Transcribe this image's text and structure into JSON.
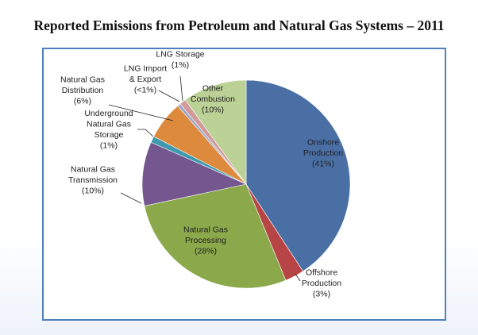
{
  "title": "Reported Emissions from Petroleum and Natural Gas Systems – 2011",
  "chart_data": {
    "type": "pie",
    "slices": [
      {
        "name": "Onshore Production",
        "value": 41,
        "label_lines": [
          "Onshore",
          "Production",
          "(41%)"
        ],
        "color": "#4a6fa5"
      },
      {
        "name": "Offshore Production",
        "value": 3,
        "label_lines": [
          "Offshore",
          "Production",
          "(3%)"
        ],
        "color": "#b84545"
      },
      {
        "name": "Natural Gas Processing",
        "value": 28,
        "label_lines": [
          "Natural Gas",
          "Processing",
          "(28%)"
        ],
        "color": "#8ba84a"
      },
      {
        "name": "Natural Gas Transmission",
        "value": 10,
        "label_lines": [
          "Natural Gas",
          "Transmission",
          "(10%)"
        ],
        "color": "#74578f"
      },
      {
        "name": "Underground Natural Gas Storage",
        "value": 1,
        "label_lines": [
          "Underground",
          "Natural Gas",
          "Storage",
          "(1%)"
        ],
        "color": "#3f9ab0"
      },
      {
        "name": "Natural Gas Distribution",
        "value": 6,
        "label_lines": [
          "Natural Gas",
          "Distribution",
          "(6%)"
        ],
        "color": "#de8a3c"
      },
      {
        "name": "LNG Import & Export",
        "value": 0.5,
        "label_lines": [
          "LNG Import",
          "& Export",
          "(<1%)"
        ],
        "color": "#9aa9c8"
      },
      {
        "name": "LNG Storage",
        "value": 1,
        "label_lines": [
          "LNG Storage",
          "(1%)"
        ],
        "color": "#d39a9a"
      },
      {
        "name": "Other Combustion",
        "value": 10,
        "label_lines": [
          "Other",
          "Combustion",
          "(10%)"
        ],
        "color": "#bcd195"
      }
    ],
    "start_angle_deg": 0,
    "direction": "clockwise",
    "legend": "none"
  }
}
